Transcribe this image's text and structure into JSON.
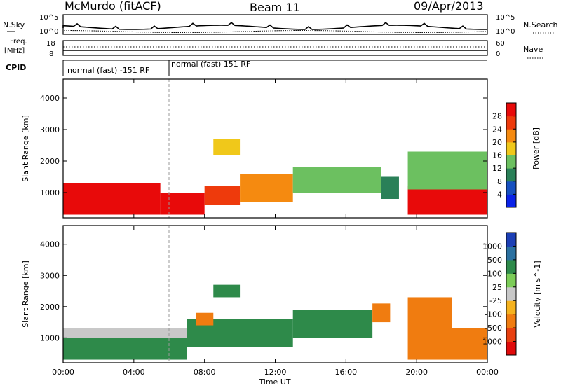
{
  "header": {
    "station": "McMurdo (fitACF)",
    "beam": "Beam 11",
    "date": "09/Apr/2013"
  },
  "noise_panel": {
    "left_label": "N.Sky",
    "right_label": "N.Search",
    "left_ticks": [
      "10^5",
      "10^0"
    ],
    "right_ticks": [
      "10^5",
      "10^0"
    ]
  },
  "freq_panel": {
    "left_label_line1": "Freq.",
    "left_label_line2": "[MHz]",
    "left_ticks": [
      "18",
      "8"
    ],
    "right_label": "Nave",
    "right_ticks": [
      "60",
      "0"
    ]
  },
  "cpid_panel": {
    "label": "CPID",
    "segments": [
      {
        "text": "normal (fast) -151 RF",
        "start_hour": 0,
        "end_hour": 6
      },
      {
        "text": "normal (fast) 151 RF",
        "start_hour": 6,
        "end_hour": 24
      }
    ]
  },
  "x_axis": {
    "label": "Time UT",
    "ticks": [
      "00:00",
      "04:00",
      "08:00",
      "12:00",
      "16:00",
      "20:00",
      "00:00"
    ],
    "tick_hours": [
      0,
      4,
      8,
      12,
      16,
      20,
      24
    ]
  },
  "power_panel": {
    "ylabel": "Slant Range [km]",
    "yticks": [
      "1000",
      "2000",
      "3000",
      "4000"
    ],
    "ytick_values": [
      1000,
      2000,
      3000,
      4000
    ],
    "colorbar_label": "Power [dB]",
    "colorbar_ticks": [
      "4",
      "8",
      "12",
      "16",
      "20",
      "24",
      "28"
    ],
    "colors": [
      "#0a22e8",
      "#1650c0",
      "#2a8058",
      "#6cc060",
      "#f0c81a",
      "#f58a10",
      "#ee3a0c",
      "#e80a0a"
    ]
  },
  "velocity_panel": {
    "ylabel": "Slant Range [km]",
    "yticks": [
      "1000",
      "2000",
      "3000",
      "4000"
    ],
    "ytick_values": [
      1000,
      2000,
      3000,
      4000
    ],
    "colorbar_label": "Velocity [m s^-1]",
    "colorbar_ticks": [
      "1000",
      "500",
      "100",
      "25",
      "-25",
      "-100",
      "-500",
      "-1000"
    ],
    "colors": [
      "#1c3fb5",
      "#2a70a0",
      "#2e8a4a",
      "#7ccc58",
      "#c8c8c8",
      "#f5b21e",
      "#f07c10",
      "#e84010",
      "#e00a0a"
    ]
  },
  "chart_data": [
    {
      "type": "heatmap",
      "title": "Power",
      "x": "Time UT (hours)",
      "xlim": [
        0,
        24
      ],
      "ylim": [
        200,
        4600
      ],
      "value_label": "Power [dB]",
      "regions": [
        {
          "x": [
            0,
            5.5
          ],
          "y": [
            300,
            1300
          ],
          "value": 28
        },
        {
          "x": [
            5.5,
            8
          ],
          "y": [
            300,
            1000
          ],
          "value": 28
        },
        {
          "x": [
            8,
            10
          ],
          "y": [
            600,
            1200
          ],
          "value": 24
        },
        {
          "x": [
            10,
            13
          ],
          "y": [
            700,
            1600
          ],
          "value": 20
        },
        {
          "x": [
            13,
            18
          ],
          "y": [
            1000,
            1800
          ],
          "value": 12
        },
        {
          "x": [
            18,
            19
          ],
          "y": [
            800,
            1500
          ],
          "value": 8
        },
        {
          "x": [
            19.5,
            24
          ],
          "y": [
            300,
            1200
          ],
          "value": 28
        },
        {
          "x": [
            19.5,
            24
          ],
          "y": [
            1100,
            2300
          ],
          "value": 12
        },
        {
          "x": [
            8.5,
            10
          ],
          "y": [
            2200,
            2700
          ],
          "value": 16
        }
      ]
    },
    {
      "type": "heatmap",
      "title": "Velocity",
      "x": "Time UT (hours)",
      "xlim": [
        0,
        24
      ],
      "ylim": [
        200,
        4600
      ],
      "value_label": "Velocity [m s^-1]",
      "regions": [
        {
          "x": [
            0,
            7
          ],
          "y": [
            300,
            1300
          ],
          "value": 100
        },
        {
          "x": [
            0,
            7
          ],
          "y": [
            1000,
            1300
          ],
          "value": 0
        },
        {
          "x": [
            7,
            13
          ],
          "y": [
            700,
            1600
          ],
          "value": 100
        },
        {
          "x": [
            7.5,
            8.5
          ],
          "y": [
            1400,
            1800
          ],
          "value": -100
        },
        {
          "x": [
            13,
            17.5
          ],
          "y": [
            1000,
            1900
          ],
          "value": 100
        },
        {
          "x": [
            17.5,
            18.5
          ],
          "y": [
            1500,
            2100
          ],
          "value": -100
        },
        {
          "x": [
            19.5,
            24
          ],
          "y": [
            300,
            1300
          ],
          "value": -100
        },
        {
          "x": [
            19.5,
            22
          ],
          "y": [
            1300,
            2300
          ],
          "value": -100
        },
        {
          "x": [
            8.5,
            10
          ],
          "y": [
            2300,
            2700
          ],
          "value": 100
        }
      ]
    }
  ]
}
